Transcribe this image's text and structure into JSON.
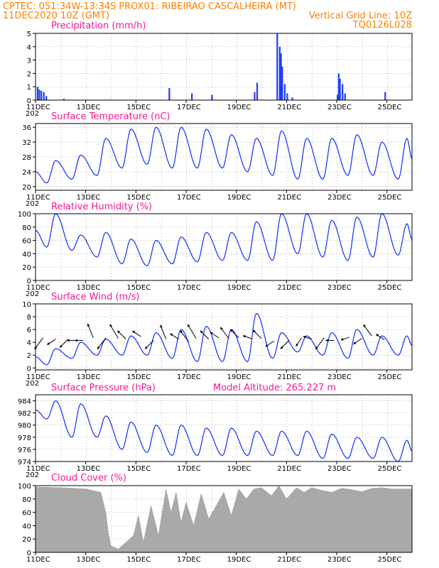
{
  "header": {
    "line1": "CPTEC:  051:34W-13:34S  PROX01: RIBEIRAO CASCALHEIRA (MT)",
    "line2_left": "11DEC2020 10Z (GMT)",
    "line2_right": "Vertical Grid Line: 10Z",
    "line3_right": "TQ0126L028"
  },
  "colors": {
    "header": "#ff8000",
    "title": "#ff1493",
    "series": "#1e3cff",
    "cloud": "#a9a9a9",
    "grid": "#888888"
  },
  "x_ticks": [
    "11DEC",
    "13DEC",
    "15DEC",
    "17DEC",
    "19DEC",
    "21DEC",
    "23DEC",
    "25DEC"
  ],
  "year_stub": "202",
  "panels": {
    "precipitation": {
      "title": "Precipitation (mm/h)"
    },
    "temperature": {
      "title": "Surface Temperature (nC)"
    },
    "humidity": {
      "title": "Relative Humidity (%)"
    },
    "wind": {
      "title": "Surface Wind (m/s)"
    },
    "pressure": {
      "title": "Surface Pressure (hPa)",
      "note": "Model Altitude: 265.227 m"
    },
    "cloud": {
      "title": "Cloud Cover (%)"
    }
  },
  "chart_data": [
    {
      "type": "bar",
      "title": "Precipitation (mm/h)",
      "x_range_days": [
        0,
        15
      ],
      "ylim": [
        0,
        5
      ],
      "yticks": [
        0,
        1,
        2,
        3,
        4,
        5
      ],
      "points": [
        [
          0.05,
          1.0
        ],
        [
          0.12,
          0.8
        ],
        [
          0.2,
          0.7
        ],
        [
          0.3,
          0.6
        ],
        [
          0.4,
          0.3
        ],
        [
          1.1,
          0.1
        ],
        [
          5.3,
          0.9
        ],
        [
          6.2,
          0.5
        ],
        [
          7.0,
          0.4
        ],
        [
          8.7,
          0.6
        ],
        [
          8.8,
          1.3
        ],
        [
          9.6,
          5.0
        ],
        [
          9.7,
          4.0
        ],
        [
          9.75,
          3.5
        ],
        [
          9.8,
          2.5
        ],
        [
          9.9,
          1.2
        ],
        [
          10.0,
          0.5
        ],
        [
          10.2,
          0.2
        ],
        [
          12.0,
          0.4
        ],
        [
          12.05,
          2.0
        ],
        [
          12.1,
          1.6
        ],
        [
          12.2,
          1.2
        ],
        [
          12.3,
          0.5
        ],
        [
          13.9,
          0.6
        ]
      ]
    },
    {
      "type": "line",
      "title": "Surface Temperature (nC)",
      "x_range_days": [
        0,
        15
      ],
      "ylim": [
        19,
        37
      ],
      "yticks": [
        20,
        24,
        28,
        32,
        36
      ],
      "daily": [
        [
          0.05,
          21,
          27
        ],
        [
          1.05,
          22,
          28.5
        ],
        [
          2.05,
          23,
          33
        ],
        [
          3.05,
          25,
          35.5
        ],
        [
          4.05,
          26,
          36
        ],
        [
          5.05,
          25,
          36
        ],
        [
          6.05,
          25,
          35.5
        ],
        [
          7.05,
          25,
          34
        ],
        [
          8.05,
          24,
          33
        ],
        [
          9.05,
          23,
          35
        ],
        [
          10.05,
          22,
          33
        ],
        [
          11.05,
          22,
          33
        ],
        [
          12.05,
          23,
          34
        ],
        [
          13.05,
          23,
          32
        ],
        [
          14.05,
          22,
          33
        ]
      ]
    },
    {
      "type": "line",
      "title": "Relative Humidity (%)",
      "x_range_days": [
        0,
        15
      ],
      "ylim": [
        0,
        100
      ],
      "yticks": [
        0,
        20,
        40,
        60,
        80,
        100
      ],
      "daily": [
        [
          0.05,
          50,
          100
        ],
        [
          1.05,
          45,
          68
        ],
        [
          2.05,
          35,
          72
        ],
        [
          3.05,
          25,
          62
        ],
        [
          4.05,
          22,
          60
        ],
        [
          5.05,
          25,
          65
        ],
        [
          6.05,
          28,
          72
        ],
        [
          7.05,
          30,
          72
        ],
        [
          8.05,
          30,
          88
        ],
        [
          9.05,
          30,
          100
        ],
        [
          10.05,
          40,
          100
        ],
        [
          11.05,
          35,
          90
        ],
        [
          12.05,
          30,
          95
        ],
        [
          13.05,
          35,
          100
        ],
        [
          14.05,
          38,
          85
        ]
      ]
    },
    {
      "type": "line",
      "title": "Surface Wind (m/s)",
      "x_range_days": [
        0,
        15
      ],
      "ylim": [
        -0.3,
        10
      ],
      "yticks": [
        0,
        2,
        4,
        6,
        8,
        10
      ],
      "daily": [
        [
          0.05,
          0.5,
          3
        ],
        [
          1.05,
          1.5,
          4
        ],
        [
          2.05,
          2,
          4.5
        ],
        [
          3.05,
          2,
          5
        ],
        [
          4.05,
          2,
          5.5
        ],
        [
          5.05,
          1.5,
          6
        ],
        [
          6.05,
          1,
          6.5
        ],
        [
          7.05,
          1,
          6
        ],
        [
          8.05,
          1,
          8.5
        ],
        [
          9.05,
          1.5,
          5.5
        ],
        [
          10.05,
          2.5,
          5
        ],
        [
          11.05,
          2,
          5.5
        ],
        [
          12.05,
          1.5,
          6
        ],
        [
          13.05,
          2,
          5
        ],
        [
          14.05,
          2,
          5
        ]
      ],
      "vectors": [
        [
          0.3,
          4.7,
          -0.3,
          -0.4
        ],
        [
          0.8,
          4.5,
          -0.3,
          -0.2
        ],
        [
          1.3,
          4.5,
          -0.3,
          -0.3
        ],
        [
          1.6,
          4.3,
          -0.3,
          0.0
        ],
        [
          1.9,
          4.3,
          -0.3,
          0.0
        ],
        [
          2.3,
          4.7,
          -0.2,
          0.5
        ],
        [
          2.8,
          4.7,
          -0.3,
          -0.4
        ],
        [
          3.3,
          4.6,
          -0.3,
          0.5
        ],
        [
          3.6,
          4.5,
          -0.3,
          0.3
        ],
        [
          4.2,
          4.9,
          -0.3,
          0.2
        ],
        [
          4.7,
          4.3,
          -0.3,
          -0.3
        ],
        [
          5.2,
          4.5,
          -0.2,
          0.5
        ],
        [
          5.7,
          4.5,
          -0.3,
          0.2
        ],
        [
          6.1,
          4.1,
          -0.3,
          0.4
        ],
        [
          6.4,
          4.6,
          -0.3,
          0.5
        ],
        [
          6.9,
          4.5,
          -0.3,
          0.3
        ],
        [
          7.3,
          4.7,
          -0.3,
          0.2
        ],
        [
          7.7,
          4.6,
          -0.3,
          0.4
        ],
        [
          8.1,
          4.7,
          -0.3,
          0.3
        ],
        [
          8.6,
          4.6,
          -0.3,
          0.1
        ],
        [
          9.0,
          4.6,
          -0.3,
          0.3
        ],
        [
          9.5,
          4.2,
          -0.3,
          -0.2
        ],
        [
          10.1,
          4.3,
          -0.3,
          -0.3
        ],
        [
          10.6,
          4.7,
          -0.2,
          -0.3
        ],
        [
          11.0,
          4.5,
          -0.3,
          0.1
        ],
        [
          11.5,
          4.7,
          -0.3,
          -0.4
        ],
        [
          11.9,
          4.3,
          -0.3,
          0.0
        ],
        [
          12.5,
          4.8,
          -0.3,
          -0.1
        ],
        [
          13.0,
          4.6,
          -0.3,
          -0.2
        ],
        [
          13.4,
          5.0,
          -0.3,
          0.4
        ],
        [
          13.9,
          4.4,
          -0.3,
          0.2
        ]
      ]
    },
    {
      "type": "line",
      "title": "Surface Pressure (hPa)",
      "x_range_days": [
        0,
        15
      ],
      "ylim": [
        974,
        985
      ],
      "yticks": [
        974,
        976,
        978,
        980,
        982,
        984
      ],
      "daily": [
        [
          0.05,
          981,
          984
        ],
        [
          1.05,
          978,
          983.5
        ],
        [
          2.05,
          978,
          981.5
        ],
        [
          3.05,
          976,
          980.5
        ],
        [
          4.05,
          975.5,
          980
        ],
        [
          5.05,
          975,
          980
        ],
        [
          6.05,
          975,
          979.5
        ],
        [
          7.05,
          975,
          979.5
        ],
        [
          8.05,
          975,
          979
        ],
        [
          9.05,
          975,
          979
        ],
        [
          10.05,
          975,
          979
        ],
        [
          11.05,
          974.5,
          978.5
        ],
        [
          12.05,
          974.5,
          978
        ],
        [
          13.05,
          974.5,
          978
        ],
        [
          14.05,
          974,
          977.5
        ]
      ]
    },
    {
      "type": "area",
      "title": "Cloud Cover (%)",
      "x_range_days": [
        0,
        15
      ],
      "ylim": [
        0,
        100
      ],
      "yticks": [
        0,
        20,
        40,
        60,
        80,
        100
      ],
      "points": [
        [
          0,
          98
        ],
        [
          1.0,
          97
        ],
        [
          2.0,
          95
        ],
        [
          2.6,
          90
        ],
        [
          2.8,
          60
        ],
        [
          2.9,
          30
        ],
        [
          3.0,
          10
        ],
        [
          3.3,
          5
        ],
        [
          3.6,
          15
        ],
        [
          3.9,
          25
        ],
        [
          4.1,
          55
        ],
        [
          4.3,
          15
        ],
        [
          4.6,
          70
        ],
        [
          4.9,
          25
        ],
        [
          5.2,
          95
        ],
        [
          5.4,
          60
        ],
        [
          5.6,
          90
        ],
        [
          5.8,
          45
        ],
        [
          6.0,
          75
        ],
        [
          6.3,
          40
        ],
        [
          6.6,
          88
        ],
        [
          6.9,
          50
        ],
        [
          7.2,
          70
        ],
        [
          7.5,
          90
        ],
        [
          7.8,
          55
        ],
        [
          8.1,
          95
        ],
        [
          8.4,
          80
        ],
        [
          8.7,
          95
        ],
        [
          9.0,
          97
        ],
        [
          9.4,
          85
        ],
        [
          9.7,
          100
        ],
        [
          10.0,
          80
        ],
        [
          10.4,
          97
        ],
        [
          10.7,
          90
        ],
        [
          11.0,
          97
        ],
        [
          11.4,
          93
        ],
        [
          11.8,
          90
        ],
        [
          12.2,
          96
        ],
        [
          12.6,
          94
        ],
        [
          13.0,
          91
        ],
        [
          13.4,
          96
        ],
        [
          13.8,
          97
        ],
        [
          14.2,
          95
        ],
        [
          15.0,
          95
        ]
      ]
    }
  ]
}
